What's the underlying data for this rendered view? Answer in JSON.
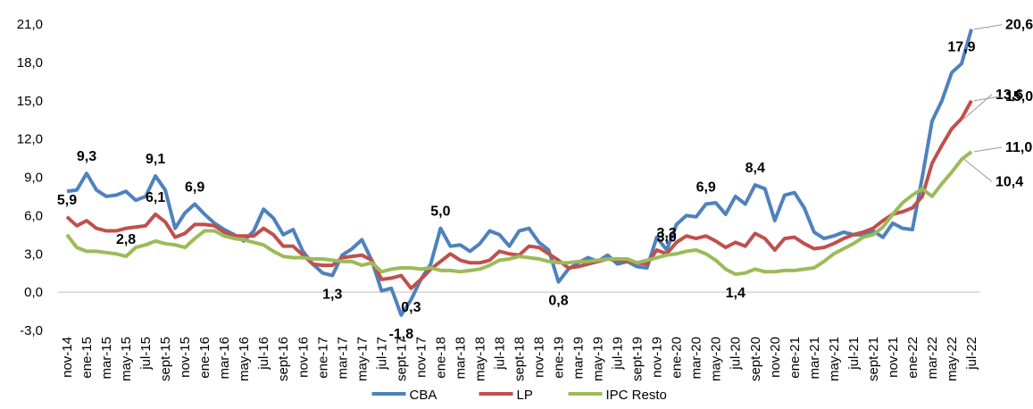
{
  "chart_data": {
    "type": "line",
    "categories": [
      "nov-14",
      null,
      "ene-15",
      null,
      "mar-15",
      null,
      "may-15",
      null,
      "jul-15",
      null,
      "sept-15",
      null,
      "nov-15",
      null,
      "ene-16",
      null,
      "mar-16",
      null,
      "may-16",
      null,
      "jul-16",
      null,
      "sept-16",
      null,
      "nov-16",
      null,
      "ene-17",
      null,
      "mar-17",
      null,
      "may-17",
      null,
      "jul-17",
      null,
      "sept-17",
      null,
      "nov-17",
      null,
      "ene-18",
      null,
      "mar-18",
      null,
      "may-18",
      null,
      "jul-18",
      null,
      "sept-18",
      null,
      "nov-18",
      null,
      "ene-19",
      null,
      "mar-19",
      null,
      "may-19",
      null,
      "jul-19",
      null,
      "sept-19",
      null,
      "nov-19",
      null,
      "ene-20",
      null,
      "mar-20",
      null,
      "may-20",
      null,
      "jul-20",
      null,
      "sept-20",
      null,
      "nov-20",
      null,
      "ene-21",
      null,
      "mar-21",
      null,
      "may-21",
      null,
      "jul-21",
      null,
      "sept-21",
      null,
      "nov-21",
      null,
      "ene-22",
      null,
      "mar-22",
      null,
      "may-22",
      null,
      "jul-22"
    ],
    "series": [
      {
        "name": "CBA",
        "color": "#4f81bd",
        "values": [
          7.9,
          8.0,
          9.3,
          8.0,
          7.5,
          7.6,
          7.9,
          7.2,
          7.5,
          9.1,
          8.0,
          5.0,
          6.2,
          6.9,
          6.1,
          5.4,
          4.9,
          4.5,
          4.0,
          4.8,
          6.5,
          5.8,
          4.5,
          4.9,
          3.2,
          2.2,
          1.5,
          1.3,
          2.9,
          3.4,
          4.1,
          2.5,
          0.1,
          0.3,
          -1.8,
          -0.6,
          1.0,
          2.2,
          5.0,
          3.6,
          3.7,
          3.2,
          3.8,
          4.8,
          4.5,
          3.6,
          4.8,
          5.0,
          3.9,
          3.3,
          0.8,
          1.8,
          2.3,
          2.7,
          2.4,
          2.9,
          2.2,
          2.4,
          2.0,
          1.9,
          4.3,
          3.3,
          5.3,
          6.0,
          5.9,
          6.9,
          7.0,
          6.1,
          7.5,
          6.9,
          8.4,
          8.1,
          5.6,
          7.6,
          7.8,
          6.6,
          4.7,
          4.2,
          4.4,
          4.7,
          4.5,
          4.5,
          4.8,
          4.3,
          5.4,
          5.0,
          4.9,
          9.0,
          13.4,
          15.0,
          17.2,
          17.9,
          20.6
        ],
        "value_labels": [
          null,
          null,
          "9,3",
          null,
          null,
          null,
          null,
          null,
          null,
          "9,1",
          null,
          null,
          null,
          "6,9",
          null,
          null,
          null,
          null,
          null,
          null,
          null,
          null,
          null,
          null,
          null,
          null,
          null,
          "1,3",
          null,
          null,
          null,
          null,
          null,
          null,
          "-1,8",
          null,
          null,
          null,
          "5,0",
          null,
          null,
          null,
          null,
          null,
          null,
          null,
          null,
          null,
          null,
          null,
          "0,8",
          null,
          null,
          null,
          null,
          null,
          null,
          null,
          null,
          null,
          null,
          "3,3",
          null,
          null,
          null,
          "6,9",
          null,
          null,
          null,
          null,
          "8,4",
          null,
          null,
          null,
          null,
          null,
          null,
          null,
          null,
          null,
          null,
          null,
          null,
          null,
          null,
          null,
          null,
          null,
          null,
          null,
          null,
          "17,9",
          "20,6"
        ]
      },
      {
        "name": "LP",
        "color": "#c0504d",
        "values": [
          5.9,
          5.2,
          5.6,
          5.0,
          4.8,
          4.8,
          5.0,
          5.1,
          5.2,
          6.1,
          5.5,
          4.3,
          4.6,
          5.3,
          5.3,
          5.2,
          4.7,
          4.4,
          4.4,
          4.4,
          5.0,
          4.5,
          3.6,
          3.6,
          2.9,
          2.2,
          2.1,
          2.1,
          2.7,
          2.8,
          2.9,
          2.5,
          1.0,
          1.1,
          1.3,
          0.3,
          1.0,
          1.8,
          2.4,
          3.0,
          2.5,
          2.3,
          2.3,
          2.5,
          3.2,
          3.0,
          2.9,
          3.6,
          3.5,
          3.0,
          2.5,
          1.9,
          2.0,
          2.2,
          2.4,
          2.6,
          2.5,
          2.4,
          2.3,
          2.2,
          3.3,
          3.0,
          3.9,
          4.4,
          4.2,
          4.4,
          4.0,
          3.5,
          3.9,
          3.6,
          4.6,
          4.2,
          3.3,
          4.2,
          4.3,
          3.8,
          3.4,
          3.5,
          3.8,
          4.2,
          4.5,
          4.7,
          5.0,
          5.6,
          6.1,
          6.3,
          6.6,
          7.5,
          10.1,
          11.5,
          12.8,
          13.6,
          15.0
        ],
        "value_labels": [
          "5,9",
          null,
          null,
          null,
          null,
          null,
          null,
          null,
          null,
          "6,1",
          null,
          null,
          null,
          null,
          null,
          null,
          null,
          null,
          null,
          null,
          null,
          null,
          null,
          null,
          null,
          null,
          null,
          null,
          null,
          null,
          null,
          null,
          null,
          null,
          null,
          "0,3",
          null,
          null,
          null,
          null,
          null,
          null,
          null,
          null,
          null,
          null,
          null,
          null,
          null,
          null,
          null,
          null,
          null,
          null,
          null,
          null,
          null,
          null,
          null,
          null,
          null,
          "3,0",
          null,
          null,
          null,
          null,
          null,
          null,
          null,
          null,
          null,
          null,
          null,
          null,
          null,
          null,
          null,
          null,
          null,
          null,
          null,
          null,
          null,
          null,
          null,
          null,
          null,
          null,
          null,
          null,
          null,
          "13,6",
          "15,0"
        ]
      },
      {
        "name": "IPC Resto",
        "color": "#9bbb59",
        "values": [
          4.5,
          3.5,
          3.2,
          3.2,
          3.1,
          3.0,
          2.8,
          3.5,
          3.7,
          4.0,
          3.8,
          3.7,
          3.5,
          4.2,
          4.8,
          4.8,
          4.4,
          4.2,
          4.1,
          3.9,
          3.7,
          3.2,
          2.8,
          2.7,
          2.7,
          2.6,
          2.6,
          2.5,
          2.4,
          2.4,
          2.1,
          2.3,
          1.6,
          1.8,
          1.9,
          1.9,
          1.8,
          1.9,
          1.7,
          1.7,
          1.6,
          1.7,
          1.8,
          2.1,
          2.5,
          2.6,
          2.8,
          2.7,
          2.6,
          2.4,
          2.3,
          2.3,
          2.4,
          2.4,
          2.5,
          2.6,
          2.6,
          2.6,
          2.3,
          2.5,
          2.7,
          2.9,
          3.0,
          3.2,
          3.3,
          3.0,
          2.5,
          1.8,
          1.4,
          1.5,
          1.8,
          1.6,
          1.6,
          1.7,
          1.7,
          1.8,
          1.9,
          2.4,
          3.0,
          3.4,
          3.8,
          4.3,
          4.5,
          5.1,
          6.1,
          7.0,
          7.6,
          8.1,
          7.5,
          8.5,
          9.4,
          10.4,
          11.0
        ],
        "value_labels": [
          null,
          null,
          null,
          null,
          null,
          null,
          "2,8",
          null,
          null,
          null,
          null,
          null,
          null,
          null,
          null,
          null,
          null,
          null,
          null,
          null,
          null,
          null,
          null,
          null,
          null,
          null,
          null,
          null,
          null,
          null,
          null,
          null,
          null,
          null,
          null,
          null,
          null,
          null,
          null,
          null,
          null,
          null,
          null,
          null,
          null,
          null,
          null,
          null,
          null,
          null,
          null,
          null,
          null,
          null,
          null,
          null,
          null,
          null,
          null,
          null,
          null,
          null,
          null,
          null,
          null,
          null,
          null,
          null,
          "1,4",
          null,
          null,
          null,
          null,
          null,
          null,
          null,
          null,
          null,
          null,
          null,
          null,
          null,
          null,
          null,
          null,
          null,
          null,
          null,
          null,
          null,
          null,
          "10,4",
          "11,0"
        ]
      }
    ],
    "ylim": [
      -3,
      21
    ],
    "yticks": [
      {
        "value": -3,
        "label": "-3,0"
      },
      {
        "value": 0,
        "label": "0,0"
      },
      {
        "value": 3,
        "label": "3,0"
      },
      {
        "value": 6,
        "label": "6,0"
      },
      {
        "value": 9,
        "label": "9,0"
      },
      {
        "value": 12,
        "label": "12,0"
      },
      {
        "value": 15,
        "label": "15,0"
      },
      {
        "value": 18,
        "label": "18,0"
      },
      {
        "value": 21,
        "label": "21,0"
      }
    ],
    "legend": "bottom"
  }
}
